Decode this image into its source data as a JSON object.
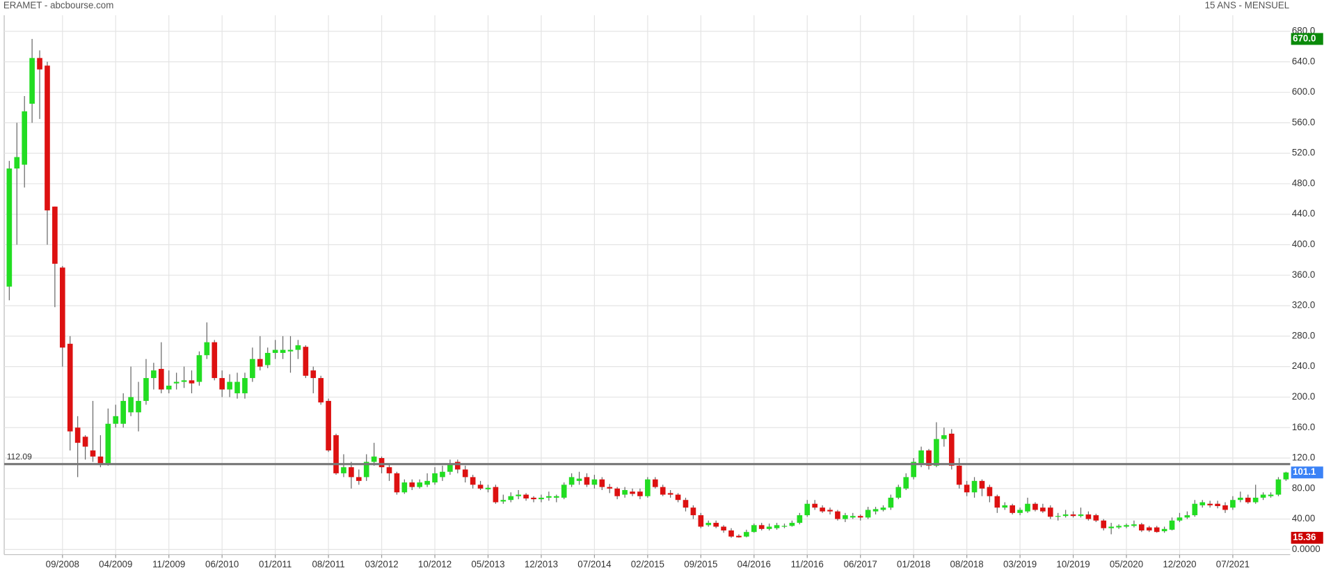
{
  "header": {
    "left": "ERAMET - abcbourse.com",
    "right": "15 ANS - MENSUEL"
  },
  "chart_data": {
    "type": "candlestick",
    "up_color": "#22dd22",
    "down_color": "#dd1111",
    "grid": true,
    "ylim": [
      0,
      700
    ],
    "yticks": [
      {
        "value": 0,
        "label": "0.0000"
      },
      {
        "value": 40,
        "label": "40.00"
      },
      {
        "value": 80,
        "label": "80.00"
      },
      {
        "value": 120,
        "label": "120.0"
      },
      {
        "value": 160,
        "label": "160.0"
      },
      {
        "value": 200,
        "label": "200.0"
      },
      {
        "value": 240,
        "label": "240.0"
      },
      {
        "value": 280,
        "label": "280.0"
      },
      {
        "value": 320,
        "label": "320.0"
      },
      {
        "value": 360,
        "label": "360.0"
      },
      {
        "value": 400,
        "label": "400.0"
      },
      {
        "value": 440,
        "label": "440.0"
      },
      {
        "value": 480,
        "label": "480.0"
      },
      {
        "value": 520,
        "label": "520.0"
      },
      {
        "value": 560,
        "label": "560.0"
      },
      {
        "value": 600,
        "label": "600.0"
      },
      {
        "value": 640,
        "label": "640.0"
      },
      {
        "value": 680,
        "label": "680.0"
      }
    ],
    "categories": [
      null,
      null,
      null,
      null,
      null,
      null,
      null,
      "09/2008",
      null,
      null,
      null,
      null,
      null,
      null,
      "04/2009",
      null,
      null,
      null,
      null,
      null,
      null,
      "11/2009",
      null,
      null,
      null,
      null,
      null,
      null,
      "06/2010",
      null,
      null,
      null,
      null,
      null,
      null,
      "01/2011",
      null,
      null,
      null,
      null,
      null,
      null,
      "08/2011",
      null,
      null,
      null,
      null,
      null,
      null,
      "03/2012",
      null,
      null,
      null,
      null,
      null,
      null,
      "10/2012",
      null,
      null,
      null,
      null,
      null,
      null,
      "05/2013",
      null,
      null,
      null,
      null,
      null,
      null,
      "12/2013",
      null,
      null,
      null,
      null,
      null,
      null,
      "07/2014",
      null,
      null,
      null,
      null,
      null,
      null,
      "02/2015",
      null,
      null,
      null,
      null,
      null,
      null,
      "09/2015",
      null,
      null,
      null,
      null,
      null,
      null,
      "04/2016",
      null,
      null,
      null,
      null,
      null,
      null,
      "11/2016",
      null,
      null,
      null,
      null,
      null,
      null,
      "06/2017",
      null,
      null,
      null,
      null,
      null,
      null,
      "01/2018",
      null,
      null,
      null,
      null,
      null,
      null,
      "08/2018",
      null,
      null,
      null,
      null,
      null,
      null,
      "03/2019",
      null,
      null,
      null,
      null,
      null,
      null,
      "10/2019",
      null,
      null,
      null,
      null,
      null,
      null,
      "05/2020",
      null,
      null,
      null,
      null,
      null,
      null,
      "12/2020",
      null,
      null,
      null,
      null,
      null,
      null,
      "07/2021",
      null,
      null,
      null,
      null,
      null,
      null,
      null
    ],
    "open": [
      345,
      500,
      505,
      585,
      645,
      635,
      450,
      370,
      270,
      160,
      148,
      130,
      122,
      112,
      165,
      165,
      180,
      180,
      195,
      225,
      237,
      210,
      218,
      220,
      222,
      220,
      255,
      272,
      225,
      210,
      205,
      205,
      225,
      250,
      242,
      258,
      258,
      260,
      262,
      266,
      235,
      225,
      195,
      150,
      100,
      108,
      95,
      95,
      115,
      120,
      108,
      100,
      75,
      88,
      82,
      85,
      88,
      95,
      102,
      115,
      105,
      95,
      85,
      79,
      82,
      63,
      65,
      70,
      72,
      68,
      66,
      68,
      68,
      68,
      85,
      90,
      95,
      85,
      92,
      82,
      80,
      72,
      76,
      76,
      70,
      92,
      82,
      74,
      72,
      65,
      55,
      45,
      32,
      35,
      30,
      25,
      18,
      17,
      23,
      32,
      27,
      28,
      30,
      31,
      35,
      45,
      60,
      55,
      52,
      50,
      40,
      42,
      44,
      42,
      50,
      52,
      55,
      68,
      80,
      95,
      112,
      130,
      110,
      145,
      152,
      110,
      85,
      75,
      90,
      82,
      70,
      55,
      58,
      48,
      50,
      60,
      55,
      55,
      43,
      44,
      46,
      44,
      46,
      45,
      38,
      28,
      29,
      30,
      31,
      33,
      29,
      29,
      24,
      26,
      38,
      42,
      45,
      58,
      60,
      60,
      58,
      55,
      65,
      68,
      62,
      68,
      70,
      72,
      92
    ],
    "high": [
      510,
      560,
      595,
      670,
      655,
      640,
      450,
      372,
      280,
      175,
      150,
      195,
      150,
      185,
      190,
      205,
      240,
      220,
      250,
      245,
      272,
      235,
      232,
      240,
      235,
      260,
      298,
      275,
      235,
      230,
      232,
      232,
      265,
      280,
      265,
      275,
      280,
      280,
      275,
      268,
      240,
      228,
      198,
      152,
      125,
      115,
      105,
      125,
      140,
      122,
      112,
      102,
      92,
      92,
      92,
      100,
      108,
      110,
      118,
      118,
      110,
      98,
      90,
      85,
      85,
      72,
      75,
      78,
      74,
      70,
      72,
      76,
      72,
      88,
      100,
      102,
      100,
      98,
      95,
      86,
      82,
      82,
      80,
      80,
      95,
      95,
      85,
      78,
      74,
      68,
      58,
      48,
      38,
      38,
      32,
      28,
      20,
      26,
      34,
      35,
      34,
      35,
      34,
      38,
      48,
      65,
      65,
      58,
      55,
      52,
      48,
      48,
      46,
      56,
      56,
      58,
      72,
      85,
      100,
      120,
      135,
      132,
      167,
      160,
      158,
      120,
      90,
      95,
      92,
      85,
      72,
      62,
      60,
      55,
      68,
      62,
      60,
      58,
      48,
      52,
      50,
      55,
      50,
      47,
      40,
      35,
      33,
      34,
      38,
      35,
      31,
      31,
      30,
      42,
      48,
      50,
      65,
      65,
      64,
      64,
      62,
      70,
      76,
      72,
      85,
      75,
      75,
      95,
      102
    ],
    "low": [
      327,
      400,
      475,
      560,
      565,
      400,
      318,
      240,
      130,
      95,
      118,
      115,
      108,
      110,
      160,
      160,
      175,
      155,
      190,
      210,
      205,
      205,
      210,
      212,
      205,
      215,
      250,
      222,
      200,
      200,
      198,
      198,
      220,
      235,
      238,
      250,
      250,
      232,
      250,
      225,
      205,
      190,
      128,
      98,
      95,
      80,
      85,
      90,
      110,
      100,
      90,
      72,
      73,
      78,
      80,
      82,
      85,
      90,
      98,
      100,
      88,
      80,
      78,
      75,
      60,
      60,
      62,
      66,
      64,
      62,
      62,
      64,
      62,
      66,
      82,
      85,
      82,
      80,
      78,
      74,
      66,
      68,
      70,
      66,
      68,
      80,
      70,
      68,
      62,
      50,
      40,
      28,
      30,
      28,
      22,
      15.36,
      15.5,
      16,
      22,
      25,
      25,
      26,
      28,
      30,
      33,
      43,
      52,
      48,
      46,
      38,
      36,
      40,
      38,
      40,
      46,
      50,
      52,
      66,
      78,
      92,
      108,
      105,
      108,
      135,
      105,
      80,
      70,
      68,
      70,
      62,
      48,
      52,
      46,
      45,
      48,
      50,
      48,
      40,
      38,
      42,
      42,
      42,
      38,
      36,
      25,
      20,
      27,
      28,
      29,
      23,
      23,
      22,
      22,
      25,
      36,
      40,
      43,
      55,
      55,
      54,
      48,
      52,
      62,
      60,
      60,
      65,
      68,
      70,
      90
    ],
    "close": [
      500,
      515,
      575,
      645,
      630,
      445,
      375,
      265,
      155,
      140,
      135,
      122,
      112,
      165,
      175,
      195,
      200,
      195,
      225,
      235,
      210,
      215,
      220,
      222,
      218,
      255,
      272,
      225,
      210,
      220,
      220,
      225,
      250,
      240,
      258,
      262,
      262,
      262,
      268,
      228,
      225,
      193,
      130,
      100,
      108,
      95,
      90,
      115,
      122,
      108,
      100,
      75,
      88,
      82,
      88,
      90,
      100,
      102,
      112,
      105,
      95,
      85,
      80,
      81,
      62,
      65,
      70,
      72,
      67,
      66,
      68,
      70,
      70,
      85,
      95,
      93,
      85,
      92,
      82,
      80,
      70,
      78,
      73,
      70,
      92,
      82,
      72,
      72,
      65,
      55,
      45,
      30,
      35,
      30,
      25,
      17,
      16,
      23,
      32,
      27,
      30,
      32,
      31,
      35,
      45,
      60,
      55,
      50,
      50,
      40,
      45,
      44,
      42,
      52,
      53,
      55,
      68,
      82,
      95,
      115,
      130,
      110,
      145,
      150,
      110,
      85,
      75,
      90,
      80,
      70,
      55,
      58,
      48,
      52,
      60,
      52,
      50,
      43,
      44,
      46,
      44,
      46,
      40,
      38,
      28,
      30,
      31,
      32,
      33,
      25,
      25,
      23,
      27,
      38,
      42,
      45,
      60,
      62,
      58,
      57,
      52,
      65,
      68,
      62,
      68,
      72,
      72,
      92,
      101.1
    ],
    "hlines": [
      {
        "value": 112.09,
        "label": "112.09",
        "color": "#777777"
      }
    ],
    "markers": [
      {
        "value": 670,
        "label": "670.0",
        "color": "#0a8a0a"
      },
      {
        "value": 101.1,
        "label": "101.1",
        "color": "#3b82f6"
      },
      {
        "value": 15.36,
        "label": "15.36",
        "color": "#cc0000"
      }
    ]
  }
}
